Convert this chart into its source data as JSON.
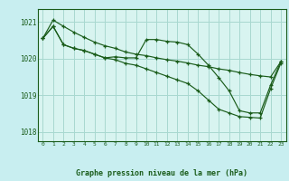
{
  "title": "Graphe pression niveau de la mer (hPa)",
  "bg_color": "#c8eef0",
  "plot_bg_color": "#d8f4f0",
  "grid_color": "#a8d8d0",
  "line_color": "#1a5c1a",
  "xlim": [
    -0.5,
    23.5
  ],
  "ylim": [
    1017.75,
    1021.35
  ],
  "yticks": [
    1018,
    1019,
    1020,
    1021
  ],
  "xticks": [
    0,
    1,
    2,
    3,
    4,
    5,
    6,
    7,
    8,
    9,
    10,
    11,
    12,
    13,
    14,
    15,
    16,
    17,
    18,
    19,
    20,
    21,
    22,
    23
  ],
  "series": [
    [
      1020.55,
      1021.05,
      1020.88,
      1020.72,
      1020.58,
      1020.45,
      1020.35,
      1020.28,
      1020.18,
      1020.12,
      1020.08,
      1020.02,
      1019.97,
      1019.93,
      1019.88,
      1019.82,
      1019.78,
      1019.72,
      1019.68,
      1019.62,
      1019.57,
      1019.53,
      1019.5,
      1019.92
    ],
    [
      1020.55,
      1020.88,
      1020.38,
      1020.28,
      1020.22,
      1020.12,
      1020.02,
      1020.05,
      1020.02,
      1020.02,
      1020.52,
      1020.52,
      1020.47,
      1020.45,
      1020.38,
      1020.12,
      1019.82,
      1019.48,
      1019.12,
      1018.58,
      1018.52,
      1018.52,
      1019.28,
      1019.92
    ],
    [
      1020.55,
      1020.88,
      1020.38,
      1020.28,
      1020.22,
      1020.12,
      1020.02,
      1019.97,
      1019.87,
      1019.82,
      1019.72,
      1019.62,
      1019.52,
      1019.42,
      1019.32,
      1019.12,
      1018.87,
      1018.62,
      1018.52,
      1018.42,
      1018.4,
      1018.38,
      1019.18,
      1019.88
    ]
  ]
}
